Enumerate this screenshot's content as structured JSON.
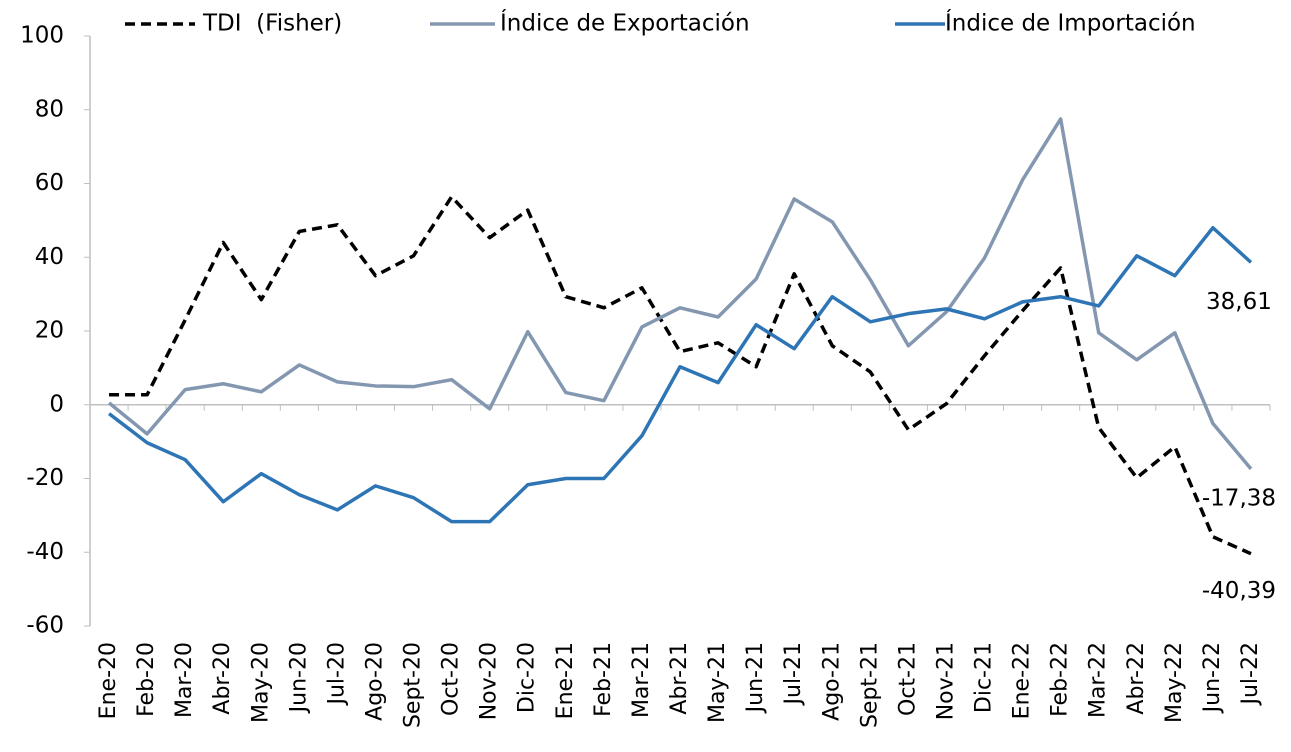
{
  "chart_data": {
    "type": "line",
    "categories": [
      "Ene-20",
      "Feb-20",
      "Mar-20",
      "Abr-20",
      "May-20",
      "Jun-20",
      "Jul-20",
      "Ago-20",
      "Sept-20",
      "Oct-20",
      "Nov-20",
      "Dic-20",
      "Ene-21",
      "Feb-21",
      "Mar-21",
      "Abr-21",
      "May-21",
      "Jun-21",
      "Jul-21",
      "Ago-21",
      "Sept-21",
      "Oct-21",
      "Nov-21",
      "Dic-21",
      "Ene-22",
      "Feb-22",
      "Mar-22",
      "Abr-22",
      "May-22",
      "Jun-22",
      "Jul-22"
    ],
    "series": [
      {
        "name": "TDI  (Fisher)",
        "color": "#000000",
        "dashed": true,
        "values": [
          2.7,
          2.7,
          23,
          44,
          28.5,
          47,
          48.8,
          35,
          40.4,
          56.4,
          45.3,
          52.8,
          29.3,
          26.3,
          31.7,
          14.4,
          16.8,
          10.3,
          35.5,
          16,
          8.9,
          -6.8,
          0.3,
          13.3,
          25.5,
          37.1,
          -6.2,
          -19.8,
          -11.4,
          -35.8,
          -40.39
        ],
        "value_labels": [
          null,
          null,
          null,
          null,
          null,
          null,
          null,
          null,
          null,
          null,
          null,
          null,
          null,
          null,
          null,
          null,
          null,
          null,
          null,
          null,
          null,
          null,
          null,
          null,
          null,
          null,
          null,
          null,
          null,
          null,
          "-40,39"
        ]
      },
      {
        "name": "Índice de Exportación",
        "color": "#8497b0",
        "values": [
          0.5,
          -7.9,
          4.1,
          5.7,
          3.5,
          10.8,
          6.2,
          5.1,
          4.9,
          6.8,
          -1.1,
          19.8,
          3.3,
          1.1,
          21.1,
          26.3,
          23.8,
          34.1,
          55.8,
          49.6,
          33.9,
          16,
          25.2,
          39.8,
          61,
          77.5,
          19.5,
          12.2,
          19.5,
          -5.1,
          -17.38
        ],
        "value_labels": [
          null,
          null,
          null,
          null,
          null,
          null,
          null,
          null,
          null,
          null,
          null,
          null,
          null,
          null,
          null,
          null,
          null,
          null,
          null,
          null,
          null,
          null,
          null,
          null,
          null,
          null,
          null,
          null,
          null,
          null,
          "-17,38"
        ]
      },
      {
        "name": "Índice de Importación",
        "color": "#2e75b6",
        "values": [
          -2.4,
          -10.3,
          -14.9,
          -26.3,
          -18.7,
          -24.4,
          -28.5,
          -22,
          -25.2,
          -31.7,
          -31.7,
          -21.7,
          -20,
          -20,
          -8.4,
          10.3,
          6,
          21.7,
          15.2,
          29.3,
          22.5,
          24.7,
          26,
          23.3,
          27.9,
          29.3,
          26.8,
          40.4,
          35,
          48,
          38.61
        ],
        "value_labels": [
          null,
          null,
          null,
          null,
          null,
          null,
          null,
          null,
          null,
          null,
          null,
          null,
          null,
          null,
          null,
          null,
          null,
          null,
          null,
          null,
          null,
          null,
          null,
          null,
          null,
          null,
          null,
          null,
          null,
          null,
          "38,61"
        ]
      }
    ],
    "ylim": [
      -60,
      100
    ],
    "yticks": [
      -60,
      -40,
      -20,
      0,
      20,
      40,
      60,
      80,
      100
    ],
    "legend": "top"
  }
}
